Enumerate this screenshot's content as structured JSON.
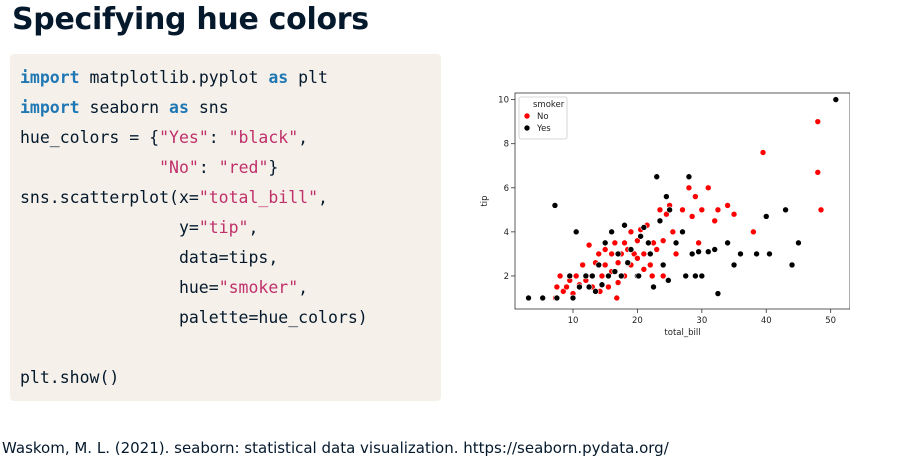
{
  "slide": {
    "title": "Specifying hue colors",
    "citation": "Waskom, M. L. (2021). seaborn: statistical data visualization. https://seaborn.pydata.org/"
  },
  "code": {
    "lines": [
      [
        {
          "t": "kw",
          "v": "import"
        },
        {
          "t": "plain",
          "v": " matplotlib.pyplot "
        },
        {
          "t": "kw",
          "v": "as"
        },
        {
          "t": "plain",
          "v": " plt"
        }
      ],
      [
        {
          "t": "kw",
          "v": "import"
        },
        {
          "t": "plain",
          "v": " seaborn "
        },
        {
          "t": "kw",
          "v": "as"
        },
        {
          "t": "plain",
          "v": " sns"
        }
      ],
      [
        {
          "t": "plain",
          "v": "hue_colors = {"
        },
        {
          "t": "str",
          "v": "\"Yes\""
        },
        {
          "t": "plain",
          "v": ": "
        },
        {
          "t": "str",
          "v": "\"black\""
        },
        {
          "t": "plain",
          "v": ","
        }
      ],
      [
        {
          "t": "plain",
          "v": "              "
        },
        {
          "t": "str",
          "v": "\"No\""
        },
        {
          "t": "plain",
          "v": ": "
        },
        {
          "t": "str",
          "v": "\"red\""
        },
        {
          "t": "plain",
          "v": "}"
        }
      ],
      [
        {
          "t": "plain",
          "v": "sns.scatterplot(x="
        },
        {
          "t": "str",
          "v": "\"total_bill\""
        },
        {
          "t": "plain",
          "v": ","
        }
      ],
      [
        {
          "t": "plain",
          "v": "                y="
        },
        {
          "t": "str",
          "v": "\"tip\""
        },
        {
          "t": "plain",
          "v": ","
        }
      ],
      [
        {
          "t": "plain",
          "v": "                data=tips,"
        }
      ],
      [
        {
          "t": "plain",
          "v": "                hue="
        },
        {
          "t": "str",
          "v": "\"smoker\""
        },
        {
          "t": "plain",
          "v": ","
        }
      ],
      [
        {
          "t": "plain",
          "v": "                palette=hue_colors)"
        }
      ],
      [],
      [
        {
          "t": "plain",
          "v": "plt.show()"
        }
      ]
    ]
  },
  "chart_data": {
    "type": "scatter",
    "xlabel": "total_bill",
    "ylabel": "tip",
    "xlim": [
      1,
      53
    ],
    "ylim": [
      0.5,
      10.3
    ],
    "xticks": [
      10,
      20,
      30,
      40,
      50
    ],
    "yticks": [
      2,
      4,
      6,
      8,
      10
    ],
    "grid": false,
    "legend": {
      "title": "smoker",
      "placement": "top-left",
      "entries": [
        "No",
        "Yes"
      ]
    },
    "colors": {
      "No": "#ff0000",
      "Yes": "#000000"
    },
    "series": [
      {
        "name": "No",
        "color": "#ff0000",
        "points": [
          [
            7.3,
            1.0
          ],
          [
            7.5,
            1.5
          ],
          [
            8.0,
            2.0
          ],
          [
            8.5,
            1.3
          ],
          [
            9.0,
            1.5
          ],
          [
            9.5,
            1.8
          ],
          [
            10.0,
            1.2
          ],
          [
            10.5,
            2.0
          ],
          [
            11.0,
            1.6
          ],
          [
            11.5,
            2.5
          ],
          [
            12.0,
            1.8
          ],
          [
            12.5,
            3.4
          ],
          [
            13.0,
            2.0
          ],
          [
            13.0,
            1.5
          ],
          [
            13.5,
            2.6
          ],
          [
            14.0,
            3.0
          ],
          [
            14.5,
            2.0
          ],
          [
            15.0,
            3.2
          ],
          [
            15.0,
            2.5
          ],
          [
            15.5,
            1.5
          ],
          [
            16.0,
            3.0
          ],
          [
            16.0,
            2.2
          ],
          [
            16.5,
            3.5
          ],
          [
            17.0,
            2.6
          ],
          [
            17.0,
            1.7
          ],
          [
            17.5,
            3.0
          ],
          [
            18.0,
            3.5
          ],
          [
            18.0,
            2.0
          ],
          [
            18.5,
            3.2
          ],
          [
            19.0,
            2.5
          ],
          [
            19.0,
            4.0
          ],
          [
            19.5,
            3.0
          ],
          [
            20.0,
            2.8
          ],
          [
            20.0,
            3.6
          ],
          [
            20.5,
            4.1
          ],
          [
            21.0,
            3.0
          ],
          [
            21.0,
            2.3
          ],
          [
            21.5,
            4.3
          ],
          [
            22.0,
            2.5
          ],
          [
            22.5,
            3.5
          ],
          [
            23.0,
            3.2
          ],
          [
            23.5,
            5.0
          ],
          [
            24.0,
            2.0
          ],
          [
            24.0,
            3.6
          ],
          [
            24.5,
            4.8
          ],
          [
            25.0,
            5.2
          ],
          [
            25.5,
            4.0
          ],
          [
            26.0,
            3.0
          ],
          [
            27.0,
            5.0
          ],
          [
            28.0,
            6.0
          ],
          [
            28.5,
            4.7
          ],
          [
            29.0,
            5.6
          ],
          [
            29.5,
            3.5
          ],
          [
            30.0,
            5.0
          ],
          [
            31.0,
            6.0
          ],
          [
            32.0,
            4.5
          ],
          [
            32.5,
            5.0
          ],
          [
            34.0,
            5.2
          ],
          [
            35.0,
            4.8
          ],
          [
            38.0,
            4.0
          ],
          [
            39.5,
            7.6
          ],
          [
            48.0,
            9.0
          ],
          [
            48.0,
            6.7
          ],
          [
            48.5,
            5.0
          ],
          [
            16.8,
            1.0
          ],
          [
            22.3,
            2.0
          ],
          [
            12.9,
            2.0
          ],
          [
            14.2,
            1.3
          ]
        ]
      },
      {
        "name": "Yes",
        "color": "#000000",
        "points": [
          [
            3.1,
            1.0
          ],
          [
            5.3,
            1.0
          ],
          [
            7.2,
            5.2
          ],
          [
            7.5,
            1.0
          ],
          [
            9.5,
            2.0
          ],
          [
            10.0,
            1.0
          ],
          [
            10.5,
            4.0
          ],
          [
            11.0,
            1.5
          ],
          [
            12.0,
            2.0
          ],
          [
            12.5,
            1.5
          ],
          [
            13.0,
            2.0
          ],
          [
            13.5,
            1.3
          ],
          [
            14.0,
            2.5
          ],
          [
            14.5,
            1.6
          ],
          [
            15.0,
            3.5
          ],
          [
            15.5,
            2.0
          ],
          [
            16.0,
            4.0
          ],
          [
            16.5,
            2.2
          ],
          [
            17.0,
            3.0
          ],
          [
            17.5,
            2.0
          ],
          [
            18.0,
            4.3
          ],
          [
            18.5,
            2.6
          ],
          [
            19.0,
            3.2
          ],
          [
            20.0,
            2.0
          ],
          [
            20.5,
            3.8
          ],
          [
            21.0,
            4.2
          ],
          [
            22.0,
            3.0
          ],
          [
            22.5,
            1.5
          ],
          [
            23.0,
            6.5
          ],
          [
            23.5,
            4.5
          ],
          [
            24.0,
            2.5
          ],
          [
            24.5,
            5.6
          ],
          [
            25.0,
            5.0
          ],
          [
            26.0,
            3.5
          ],
          [
            27.0,
            4.0
          ],
          [
            27.5,
            2.0
          ],
          [
            28.0,
            6.5
          ],
          [
            28.5,
            3.0
          ],
          [
            29.0,
            2.0
          ],
          [
            29.5,
            3.1
          ],
          [
            30.0,
            2.0
          ],
          [
            31.0,
            3.1
          ],
          [
            32.0,
            3.2
          ],
          [
            32.5,
            1.2
          ],
          [
            34.0,
            3.5
          ],
          [
            35.0,
            2.5
          ],
          [
            36.0,
            3.0
          ],
          [
            38.5,
            3.0
          ],
          [
            40.0,
            4.7
          ],
          [
            40.5,
            3.0
          ],
          [
            43.0,
            5.0
          ],
          [
            44.0,
            2.5
          ],
          [
            45.0,
            3.5
          ],
          [
            50.8,
            10.0
          ],
          [
            20.2,
            2.0
          ],
          [
            21.7,
            3.5
          ],
          [
            24.8,
            1.8
          ]
        ]
      }
    ]
  }
}
